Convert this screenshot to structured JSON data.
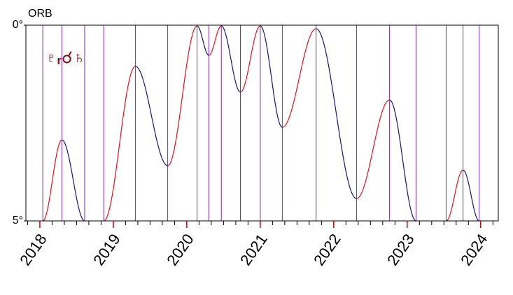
{
  "chart_data": {
    "type": "line",
    "ylabel": "ORB",
    "annotation": "♇ᵣ☌♄",
    "x": [
      2018.04,
      2018.3,
      2018.61,
      null,
      2018.87,
      2019.3,
      2019.74,
      2020.14,
      2020.3,
      2020.47,
      2020.73,
      2021.0,
      2021.3,
      2021.76,
      2022.31,
      2022.76,
      2023.12,
      null,
      2023.53,
      2023.76,
      2023.98
    ],
    "values": [
      5,
      2.93,
      5,
      null,
      5,
      1.05,
      3.59,
      0.02,
      0.77,
      0.02,
      1.71,
      0.02,
      2.61,
      0.09,
      4.43,
      1.91,
      5,
      null,
      5,
      3.7,
      5
    ],
    "xlim": [
      2017.81,
      2024.24
    ],
    "xticks": [
      2018,
      2019,
      2020,
      2021,
      2022,
      2023,
      2024
    ],
    "xminor": 6,
    "ylim": [
      0,
      5
    ],
    "yticks": [
      {
        "value": 0,
        "label": "0°"
      },
      {
        "value": 5,
        "label": "5°"
      }
    ],
    "line_colors": {
      "applying": "#e8101a",
      "separating": "#14148c"
    },
    "station_color": "#7a2aa8",
    "tick_color": "#cc0000"
  }
}
